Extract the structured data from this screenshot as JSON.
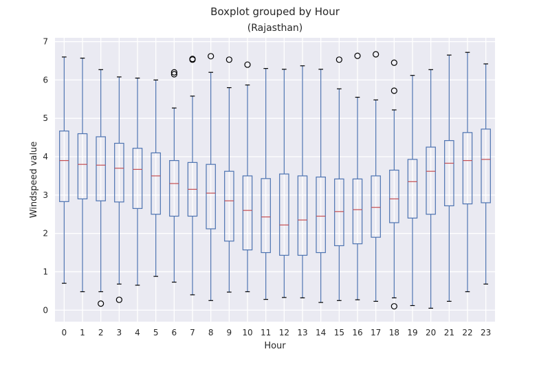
{
  "chart_data": {
    "type": "boxplot",
    "suptitle": "Boxplot grouped by Hour",
    "title": "(Rajasthan)",
    "xlabel": "Hour",
    "ylabel": "Windspeed value",
    "ylim": [
      -0.3,
      7.1
    ],
    "yticks": [
      0,
      1,
      2,
      3,
      4,
      5,
      6,
      7
    ],
    "grid": true,
    "background": "#eaeaf2",
    "box_color": "#4c72b0",
    "median_color": "#c44e52",
    "categories": [
      "0",
      "1",
      "2",
      "3",
      "4",
      "5",
      "6",
      "7",
      "8",
      "9",
      "10",
      "11",
      "12",
      "13",
      "14",
      "15",
      "16",
      "17",
      "18",
      "19",
      "20",
      "21",
      "22",
      "23"
    ],
    "boxes": [
      {
        "whislo": 0.7,
        "q1": 2.83,
        "med": 3.9,
        "q3": 4.67,
        "whishi": 6.6,
        "fliers": []
      },
      {
        "whislo": 0.48,
        "q1": 2.9,
        "med": 3.8,
        "q3": 4.6,
        "whishi": 6.57,
        "fliers": []
      },
      {
        "whislo": 0.48,
        "q1": 2.85,
        "med": 3.78,
        "q3": 4.52,
        "whishi": 6.27,
        "fliers": [
          0.17
        ]
      },
      {
        "whislo": 0.68,
        "q1": 2.82,
        "med": 3.7,
        "q3": 4.35,
        "whishi": 6.08,
        "fliers": [
          0.27
        ]
      },
      {
        "whislo": 0.65,
        "q1": 2.65,
        "med": 3.67,
        "q3": 4.22,
        "whishi": 6.05,
        "fliers": []
      },
      {
        "whislo": 0.88,
        "q1": 2.5,
        "med": 3.5,
        "q3": 4.1,
        "whishi": 6.0,
        "fliers": []
      },
      {
        "whislo": 0.73,
        "q1": 2.45,
        "med": 3.3,
        "q3": 3.9,
        "whishi": 5.27,
        "fliers": [
          6.15,
          6.2
        ]
      },
      {
        "whislo": 0.4,
        "q1": 2.45,
        "med": 3.15,
        "q3": 3.85,
        "whishi": 5.58,
        "fliers": [
          6.53,
          6.55
        ]
      },
      {
        "whislo": 0.25,
        "q1": 2.12,
        "med": 3.05,
        "q3": 3.8,
        "whishi": 6.2,
        "fliers": [
          6.62
        ]
      },
      {
        "whislo": 0.47,
        "q1": 1.8,
        "med": 2.85,
        "q3": 3.62,
        "whishi": 5.8,
        "fliers": [
          6.53
        ]
      },
      {
        "whislo": 0.48,
        "q1": 1.57,
        "med": 2.6,
        "q3": 3.5,
        "whishi": 5.87,
        "fliers": [
          6.4
        ]
      },
      {
        "whislo": 0.28,
        "q1": 1.5,
        "med": 2.43,
        "q3": 3.43,
        "whishi": 6.3,
        "fliers": []
      },
      {
        "whislo": 0.33,
        "q1": 1.43,
        "med": 2.22,
        "q3": 3.55,
        "whishi": 6.28,
        "fliers": []
      },
      {
        "whislo": 0.32,
        "q1": 1.43,
        "med": 2.35,
        "q3": 3.5,
        "whishi": 6.37,
        "fliers": []
      },
      {
        "whislo": 0.2,
        "q1": 1.5,
        "med": 2.45,
        "q3": 3.47,
        "whishi": 6.28,
        "fliers": []
      },
      {
        "whislo": 0.25,
        "q1": 1.68,
        "med": 2.57,
        "q3": 3.42,
        "whishi": 5.77,
        "fliers": [
          6.53
        ]
      },
      {
        "whislo": 0.27,
        "q1": 1.73,
        "med": 2.62,
        "q3": 3.42,
        "whishi": 5.55,
        "fliers": [
          6.63
        ]
      },
      {
        "whislo": 0.23,
        "q1": 1.9,
        "med": 2.68,
        "q3": 3.5,
        "whishi": 5.48,
        "fliers": [
          6.67
        ]
      },
      {
        "whislo": 0.32,
        "q1": 2.28,
        "med": 2.9,
        "q3": 3.65,
        "whishi": 5.22,
        "fliers": [
          6.45,
          5.72,
          0.1
        ]
      },
      {
        "whislo": 0.12,
        "q1": 2.4,
        "med": 3.35,
        "q3": 3.93,
        "whishi": 6.12,
        "fliers": []
      },
      {
        "whislo": 0.05,
        "q1": 2.5,
        "med": 3.62,
        "q3": 4.25,
        "whishi": 6.27,
        "fliers": []
      },
      {
        "whislo": 0.23,
        "q1": 2.72,
        "med": 3.83,
        "q3": 4.42,
        "whishi": 6.65,
        "fliers": []
      },
      {
        "whislo": 0.48,
        "q1": 2.77,
        "med": 3.9,
        "q3": 4.63,
        "whishi": 6.72,
        "fliers": []
      },
      {
        "whislo": 0.68,
        "q1": 2.8,
        "med": 3.93,
        "q3": 4.72,
        "whishi": 6.42,
        "fliers": []
      }
    ]
  }
}
